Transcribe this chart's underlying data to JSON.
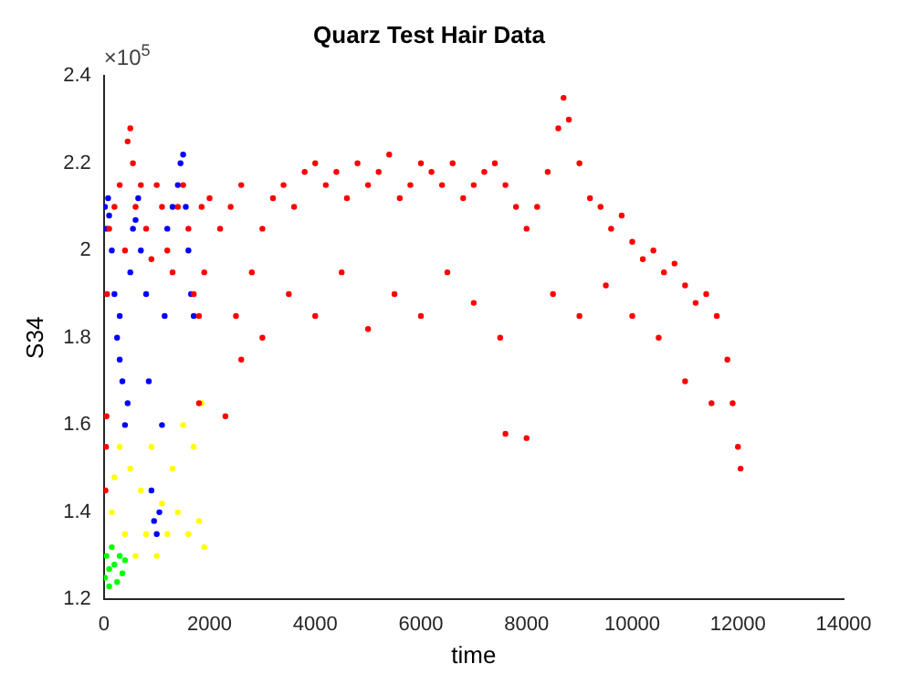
{
  "chart_data": {
    "type": "scatter",
    "title": "Quarz Test Hair Data",
    "xlabel": "time",
    "ylabel": "S34",
    "annotations": [
      "×10$^{5}$"
    ],
    "xlim": [
      0,
      14000
    ],
    "xticks": [
      0,
      2000,
      4000,
      6000,
      8000,
      10000,
      12000,
      14000
    ],
    "ylim": [
      1.2,
      2.4
    ],
    "yticks": [
      1.2,
      1.4,
      1.6,
      1.8,
      2,
      2.2,
      2.4
    ],
    "grid": false,
    "legend": false,
    "marker": "circle",
    "series": [
      {
        "color": "#ff0000",
        "x": [
          30,
          40,
          50,
          60,
          100,
          200,
          300,
          400,
          450,
          500,
          550,
          600,
          700,
          800,
          900,
          1000,
          1100,
          1200,
          1300,
          1400,
          1500,
          1600,
          1700,
          1800,
          1850,
          1900,
          2000,
          2200,
          2400,
          2600,
          2800,
          3000,
          3200,
          3400,
          3600,
          3800,
          4000,
          4200,
          4400,
          4600,
          4800,
          5000,
          5200,
          5400,
          5600,
          5800,
          6000,
          6200,
          6400,
          6600,
          6800,
          7000,
          7200,
          7400,
          7600,
          7800,
          8000,
          8200,
          8400,
          8600,
          8700,
          8800,
          9000,
          9200,
          9400,
          9600,
          9800,
          10000,
          10200,
          10400,
          10600,
          10800,
          11000,
          11200,
          11400,
          11600,
          11800,
          11900,
          12000,
          12050,
          2500,
          3000,
          3500,
          4000,
          4500,
          5000,
          5500,
          6000,
          6500,
          7000,
          7500,
          7600,
          8000,
          8500,
          9000,
          9500,
          10000,
          10500,
          11000,
          11500,
          2300,
          2600,
          1800
        ],
        "values": [
          1.45,
          1.55,
          1.62,
          1.9,
          2.05,
          2.1,
          2.15,
          2.0,
          2.25,
          2.28,
          2.2,
          2.1,
          2.15,
          2.05,
          1.98,
          2.15,
          2.1,
          2.0,
          1.95,
          2.1,
          2.15,
          2.05,
          1.9,
          1.85,
          2.1,
          1.95,
          2.12,
          2.05,
          2.1,
          2.15,
          1.95,
          2.05,
          2.12,
          2.15,
          2.1,
          2.18,
          2.2,
          2.15,
          2.18,
          2.12,
          2.2,
          2.15,
          2.18,
          2.22,
          2.12,
          2.15,
          2.2,
          2.18,
          2.15,
          2.2,
          2.12,
          2.15,
          2.18,
          2.2,
          2.15,
          2.1,
          2.05,
          2.1,
          2.18,
          2.28,
          2.35,
          2.3,
          2.2,
          2.12,
          2.1,
          2.05,
          2.08,
          2.02,
          1.98,
          2.0,
          1.95,
          1.97,
          1.92,
          1.88,
          1.9,
          1.85,
          1.75,
          1.65,
          1.55,
          1.5,
          1.85,
          1.8,
          1.9,
          1.85,
          1.95,
          1.82,
          1.9,
          1.85,
          1.95,
          1.88,
          1.8,
          1.58,
          1.57,
          1.9,
          1.85,
          1.92,
          1.85,
          1.8,
          1.7,
          1.65,
          1.62,
          1.75,
          1.65
        ]
      },
      {
        "color": "#ffff00",
        "x": [
          150,
          200,
          300,
          400,
          500,
          600,
          700,
          800,
          900,
          1000,
          1100,
          1200,
          1300,
          1400,
          1500,
          1600,
          1700,
          1800,
          1850,
          1900
        ],
        "values": [
          1.4,
          1.48,
          1.55,
          1.35,
          1.5,
          1.3,
          1.45,
          1.35,
          1.55,
          1.3,
          1.42,
          1.35,
          1.5,
          1.4,
          1.6,
          1.35,
          1.55,
          1.38,
          1.65,
          1.32
        ]
      },
      {
        "color": "#00ff00",
        "x": [
          20,
          50,
          100,
          150,
          200,
          250,
          300,
          350,
          400,
          100
        ],
        "values": [
          1.25,
          1.3,
          1.27,
          1.32,
          1.28,
          1.24,
          1.3,
          1.26,
          1.29,
          1.23
        ]
      },
      {
        "color": "#0000ff",
        "x": [
          20,
          50,
          80,
          100,
          150,
          200,
          250,
          300,
          300,
          350,
          400,
          450,
          500,
          550,
          600,
          650,
          700,
          800,
          850,
          900,
          950,
          1000,
          1050,
          1100,
          1150,
          1200,
          1300,
          1400,
          1450,
          1500,
          1550,
          1600,
          1650,
          1700
        ],
        "values": [
          2.1,
          2.05,
          2.12,
          2.08,
          2.0,
          1.9,
          1.8,
          1.75,
          1.85,
          1.7,
          1.6,
          1.65,
          1.95,
          2.05,
          2.07,
          2.12,
          2.0,
          1.9,
          1.7,
          1.45,
          1.38,
          1.35,
          1.4,
          1.6,
          1.85,
          2.05,
          2.1,
          2.15,
          2.2,
          2.22,
          2.1,
          2.0,
          1.9,
          1.85
        ]
      }
    ]
  }
}
